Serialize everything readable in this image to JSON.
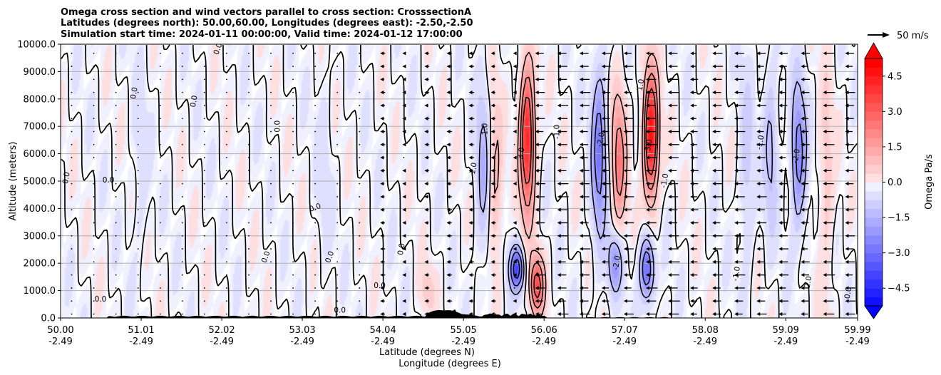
{
  "chart_data": {
    "type": "heatmap",
    "title_lines": [
      "Omega cross section and wind vectors parallel to cross section: CrosssectionA",
      "Latitudes (degrees north): 50.00,60.00, Longitudes (degrees east): -2.50,-2.50",
      "Simulation start time: 2024-01-11 00:00:00, Valid time: 2024-01-12 17:00:00"
    ],
    "ylabel": "Altitude (meters)",
    "xlabel_lines": [
      "Latitude (degrees N)",
      "Longitude (degrees E)"
    ],
    "ylim": [
      0,
      10000
    ],
    "y_ticks": [
      "0.0",
      "1000.0",
      "2000.0",
      "3000.0",
      "4000.0",
      "5000.0",
      "6000.0",
      "7000.0",
      "8000.0",
      "9000.0",
      "10000.0"
    ],
    "x_ticks": [
      {
        "lat": "50.00",
        "lon": "-2.49"
      },
      {
        "lat": "51.01",
        "lon": "-2.49"
      },
      {
        "lat": "52.02",
        "lon": "-2.49"
      },
      {
        "lat": "53.03",
        "lon": "-2.49"
      },
      {
        "lat": "54.04",
        "lon": "-2.49"
      },
      {
        "lat": "55.05",
        "lon": "-2.49"
      },
      {
        "lat": "56.06",
        "lon": "-2.49"
      },
      {
        "lat": "57.07",
        "lon": "-2.49"
      },
      {
        "lat": "58.08",
        "lon": "-2.49"
      },
      {
        "lat": "59.09",
        "lon": "-2.49"
      },
      {
        "lat": "59.99",
        "lon": "-2.49"
      }
    ],
    "xlim": [
      50.0,
      59.99
    ],
    "grid": "horizontal",
    "colorbar": {
      "label": "Omega Pa/s",
      "range": [
        -5.25,
        5.25
      ],
      "ticks": [
        "4.5",
        "3.0",
        "1.5",
        "0.0",
        "−1.5",
        "−3.0",
        "−4.5"
      ],
      "colormap": "bwr",
      "extend": "both"
    },
    "vector_key": {
      "label": "50 m/s"
    },
    "omega_features": [
      {
        "lat": 55.85,
        "alt_center": 6500,
        "alt_halfwidth": 3000,
        "omega": 4.5
      },
      {
        "lat": 55.97,
        "alt_center": 1200,
        "alt_halfwidth": 1200,
        "omega": 3.5
      },
      {
        "lat": 55.72,
        "alt_center": 1800,
        "alt_halfwidth": 900,
        "omega": -3.5
      },
      {
        "lat": 56.75,
        "alt_center": 6000,
        "alt_halfwidth": 3500,
        "omega": -2.5
      },
      {
        "lat": 57.0,
        "alt_center": 5800,
        "alt_halfwidth": 2800,
        "omega": 2.5
      },
      {
        "lat": 57.4,
        "alt_center": 6700,
        "alt_halfwidth": 2600,
        "omega": 5.0
      },
      {
        "lat": 57.35,
        "alt_center": 1800,
        "alt_halfwidth": 1300,
        "omega": -3.0
      },
      {
        "lat": 56.95,
        "alt_center": 2000,
        "alt_halfwidth": 1300,
        "omega": -2.0
      },
      {
        "lat": 59.25,
        "alt_center": 6000,
        "alt_halfwidth": 2800,
        "omega": -2.5
      },
      {
        "lat": 58.9,
        "alt_center": 6200,
        "alt_halfwidth": 3200,
        "omega": -1.2
      },
      {
        "lat": 55.3,
        "alt_center": 5500,
        "alt_halfwidth": 3500,
        "omega": -1.3
      },
      {
        "lat": 55.45,
        "alt_center": 5000,
        "alt_halfwidth": 3500,
        "omega": 1.2
      },
      {
        "lat": 58.6,
        "alt_center": 5500,
        "alt_halfwidth": 4000,
        "omega": -0.8
      },
      {
        "lat": 59.6,
        "alt_center": 5000,
        "alt_halfwidth": 4500,
        "omega": 0.8
      },
      {
        "lat": 51.0,
        "alt_center": 5500,
        "alt_halfwidth": 4000,
        "omega": -0.4
      },
      {
        "lat": 53.3,
        "alt_center": 5500,
        "alt_halfwidth": 4000,
        "omega": -0.35
      },
      {
        "lat": 54.6,
        "alt_center": 1000,
        "alt_halfwidth": 1000,
        "omega": 0.8
      }
    ],
    "contour_labels": [
      "0.0",
      "1.0",
      "2.0",
      "3.0",
      "-1.0",
      "-2.0",
      "-3.0"
    ],
    "wind_direction": "southward (arrows pointing left) over most of the section; strongest between 55.9 and 59.99"
  }
}
